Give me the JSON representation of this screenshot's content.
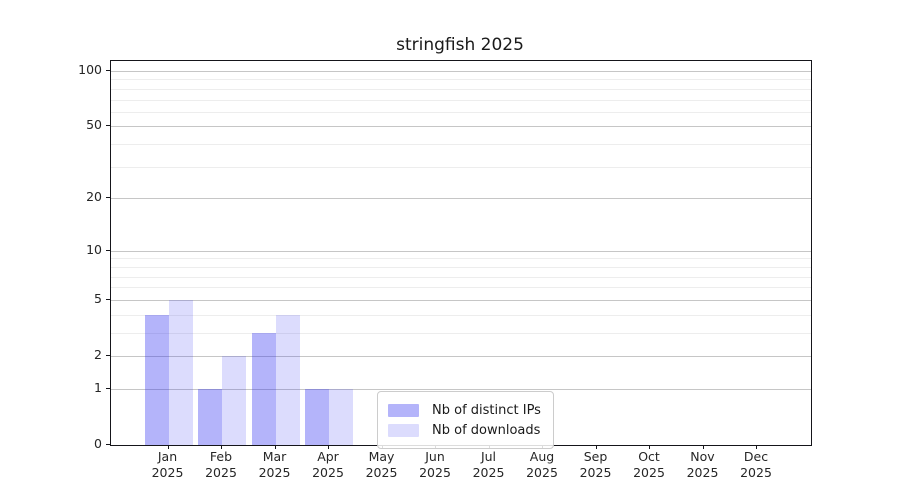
{
  "chart_data": {
    "type": "bar",
    "title": "stringfish 2025",
    "categories": [
      "Jan",
      "Feb",
      "Mar",
      "Apr",
      "May",
      "Jun",
      "Jul",
      "Aug",
      "Sep",
      "Oct",
      "Nov",
      "Dec"
    ],
    "year_label": "2025",
    "series": [
      {
        "name": "Nb of distinct IPs",
        "color": "rgba(40,40,240,0.35)",
        "values": [
          4,
          1,
          3,
          1,
          0,
          0,
          0,
          0,
          0,
          0,
          0,
          0
        ]
      },
      {
        "name": "Nb of downloads",
        "color": "rgba(40,40,240,0.16)",
        "values": [
          5,
          2,
          4,
          1,
          0,
          0,
          0,
          0,
          0,
          0,
          0,
          0
        ]
      }
    ],
    "xlabel": "",
    "ylabel": "",
    "y_axis": {
      "scale": "log1p",
      "ticks": [
        0,
        1,
        2,
        5,
        10,
        20,
        50,
        100
      ],
      "minor_gridlines": [
        3,
        4,
        6,
        7,
        8,
        9,
        30,
        40,
        60,
        70,
        80,
        90
      ],
      "range": [
        0,
        113
      ]
    },
    "grid": {
      "major_color": "#c6c6c6",
      "minor_color": "#ededed",
      "visible": true
    },
    "legend": {
      "position": "lower-center",
      "border_color": "#cccccc",
      "background": "#ffffff"
    },
    "colors": {
      "spine": "#15151a",
      "text": "#262626",
      "background": "#ffffff"
    }
  }
}
